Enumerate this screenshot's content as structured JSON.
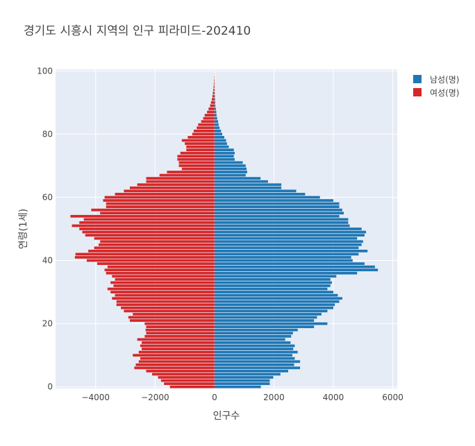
{
  "chart_data": {
    "type": "bar",
    "orientation": "horizontal",
    "title": "경기도 시흥시 지역의 인구 피라미드-202410",
    "xlabel": "인구수",
    "ylabel": "연령(1세)",
    "xlim": [
      -5350,
      6150
    ],
    "ylim": [
      -0.5,
      100.5
    ],
    "x_ticks": [
      -4000,
      -2000,
      0,
      2000,
      4000,
      6000
    ],
    "x_tick_labels": [
      "−4000",
      "−2000",
      "0",
      "2000",
      "4000",
      "6000"
    ],
    "y_ticks": [
      0,
      20,
      40,
      60,
      80,
      100
    ],
    "y_tick_labels": [
      "0",
      "20",
      "40",
      "60",
      "80",
      "100"
    ],
    "legend_position": "top-right",
    "colors": {
      "male": "#1f77b4",
      "female": "#d62728",
      "plot_bg": "#e5ecf6",
      "grid": "#ffffff"
    },
    "ages": [
      0,
      1,
      2,
      3,
      4,
      5,
      6,
      7,
      8,
      9,
      10,
      11,
      12,
      13,
      14,
      15,
      16,
      17,
      18,
      19,
      20,
      21,
      22,
      23,
      24,
      25,
      26,
      27,
      28,
      29,
      30,
      31,
      32,
      33,
      34,
      35,
      36,
      37,
      38,
      39,
      40,
      41,
      42,
      43,
      44,
      45,
      46,
      47,
      48,
      49,
      50,
      51,
      52,
      53,
      54,
      55,
      56,
      57,
      58,
      59,
      60,
      61,
      62,
      63,
      64,
      65,
      66,
      67,
      68,
      69,
      70,
      71,
      72,
      73,
      74,
      75,
      76,
      77,
      78,
      79,
      80,
      81,
      82,
      83,
      84,
      85,
      86,
      87,
      88,
      89,
      90,
      91,
      92,
      93,
      94,
      95,
      96,
      97,
      98,
      99,
      100
    ],
    "series": [
      {
        "name": "남성(명)",
        "color": "#1f77b4",
        "values": [
          1560,
          1860,
          1860,
          1980,
          2220,
          2480,
          2880,
          2680,
          2880,
          2700,
          2620,
          2800,
          2650,
          2700,
          2560,
          2380,
          2580,
          2640,
          2800,
          3350,
          3800,
          3350,
          3450,
          3600,
          3800,
          4000,
          4050,
          4200,
          4300,
          4150,
          4000,
          3800,
          3900,
          3950,
          3900,
          4100,
          4800,
          5500,
          5400,
          5050,
          4650,
          4600,
          4850,
          5150,
          4850,
          4950,
          5000,
          4800,
          5050,
          5100,
          4950,
          4550,
          4500,
          4500,
          4200,
          4350,
          4300,
          4200,
          4200,
          4000,
          3550,
          3050,
          2750,
          2250,
          2250,
          1800,
          1550,
          1050,
          1100,
          1080,
          1050,
          950,
          680,
          650,
          680,
          650,
          480,
          420,
          390,
          330,
          260,
          220,
          170,
          140,
          120,
          90,
          70,
          60,
          45,
          30,
          25,
          20,
          15,
          10,
          8,
          6,
          5,
          4,
          3,
          2,
          1
        ]
      },
      {
        "name": "여성(명)",
        "color": "#d62728",
        "values": [
          1500,
          1700,
          1800,
          1900,
          2100,
          2300,
          2700,
          2650,
          2550,
          2500,
          2750,
          2550,
          2450,
          2500,
          2450,
          2600,
          2350,
          2300,
          2320,
          2300,
          2350,
          2850,
          2900,
          2750,
          3050,
          3150,
          3300,
          3300,
          3450,
          3350,
          3500,
          3600,
          3400,
          3500,
          3350,
          3450,
          3650,
          3700,
          3600,
          3950,
          4300,
          4700,
          4680,
          4250,
          4050,
          3900,
          3850,
          4050,
          4350,
          4450,
          4550,
          4800,
          4550,
          4400,
          4850,
          3850,
          4150,
          3650,
          3650,
          3750,
          3700,
          3350,
          3050,
          2850,
          2600,
          2300,
          2300,
          1850,
          1600,
          1100,
          1200,
          1200,
          1250,
          1250,
          1150,
          950,
          950,
          1000,
          1100,
          900,
          750,
          700,
          600,
          550,
          450,
          380,
          330,
          250,
          200,
          150,
          120,
          90,
          70,
          55,
          40,
          30,
          20,
          15,
          10,
          5,
          3
        ]
      }
    ]
  }
}
